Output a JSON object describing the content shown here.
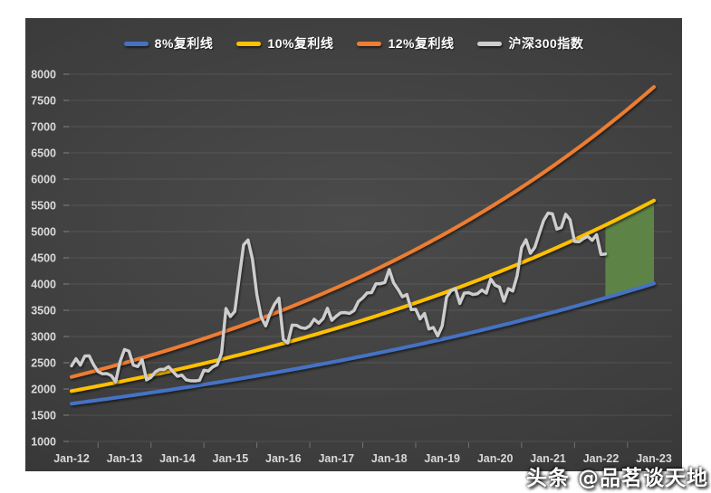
{
  "watermark": {
    "text": "头条 @品茗谈天地"
  },
  "colors": {
    "canvas_bg": "#ffffff",
    "panel_bg": "#3d3d3d",
    "grid_line": "rgba(255,255,255,0.10)",
    "tick_mark": "rgba(255,255,255,0.28)",
    "tick_text": "#d9d9d9",
    "legend_text": "#ffffff",
    "highlight_green": "#5f8a47"
  },
  "chart_data": {
    "type": "line",
    "title": "",
    "legend_position": "top",
    "grid": "horizontal",
    "x_axis": {
      "tick_labels": [
        "Jan-12",
        "Jan-13",
        "Jan-14",
        "Jan-15",
        "Jan-16",
        "Jan-17",
        "Jan-18",
        "Jan-19",
        "Jan-20",
        "Jan-21",
        "Jan-22",
        "Jan-23"
      ],
      "months_per_tick": 12,
      "total_months": 132
    },
    "y_axis": {
      "min": 1000,
      "max": 8000,
      "step": 500,
      "tick_labels": [
        "1000",
        "1500",
        "2000",
        "2500",
        "3000",
        "3500",
        "4000",
        "4500",
        "5000",
        "5500",
        "6000",
        "6500",
        "7000",
        "7500",
        "8000"
      ]
    },
    "series": [
      {
        "name": "8%复利线",
        "color": "#4472c4",
        "kind": "compound",
        "start_value": 1720,
        "annual_rate": 0.08,
        "end_value_jan23": 4011,
        "stroke_width": 4
      },
      {
        "name": "10%复利线",
        "color": "#ffc000",
        "kind": "compound",
        "start_value": 1960,
        "annual_rate": 0.1,
        "end_value_jan23": 5593,
        "stroke_width": 4
      },
      {
        "name": "12%复利线",
        "color": "#ed7d31",
        "kind": "compound",
        "start_value": 2230,
        "annual_rate": 0.12,
        "end_value_jan23": 7759,
        "stroke_width": 4
      },
      {
        "name": "沪深300指数",
        "color": "#cdcdcd",
        "kind": "data",
        "stroke_width": 3.4,
        "start_label": "Jan-12",
        "end_label": "Feb-22",
        "values": [
          2440,
          2576,
          2455,
          2627,
          2632,
          2462,
          2333,
          2289,
          2293,
          2254,
          2139,
          2523,
          2753,
          2721,
          2455,
          2427,
          2557,
          2173,
          2222,
          2327,
          2374,
          2373,
          2425,
          2331,
          2242,
          2264,
          2173,
          2157,
          2155,
          2165,
          2357,
          2342,
          2420,
          2462,
          2683,
          3534,
          3381,
          3479,
          4124,
          4748,
          4840,
          4473,
          3796,
          3366,
          3203,
          3439,
          3617,
          3731,
          2946,
          2877,
          3218,
          3213,
          3168,
          3154,
          3203,
          3330,
          3254,
          3340,
          3538,
          3310,
          3388,
          3452,
          3456,
          3440,
          3492,
          3666,
          3737,
          3831,
          3837,
          4006,
          4006,
          4031,
          4276,
          4023,
          3898,
          3757,
          3802,
          3511,
          3518,
          3335,
          3439,
          3143,
          3172,
          3011,
          3202,
          3749,
          3872,
          3913,
          3630,
          3826,
          3835,
          3800,
          3815,
          3886,
          3828,
          4097,
          3977,
          3940,
          3674,
          3912,
          3867,
          4163,
          4695,
          4844,
          4587,
          4698,
          4961,
          5211,
          5352,
          5337,
          5048,
          5078,
          5331,
          5224,
          4811,
          4805,
          4866,
          4909,
          4832,
          4940,
          4564,
          4573
        ]
      }
    ],
    "highlight_region": {
      "description": "green band between 8% and 10% compound lines for the final projected year",
      "between_series": [
        "8%复利线",
        "10%复利线"
      ],
      "from_month": 121,
      "to_month": 132,
      "color": "#5f8a47",
      "opacity": 0.92
    }
  }
}
